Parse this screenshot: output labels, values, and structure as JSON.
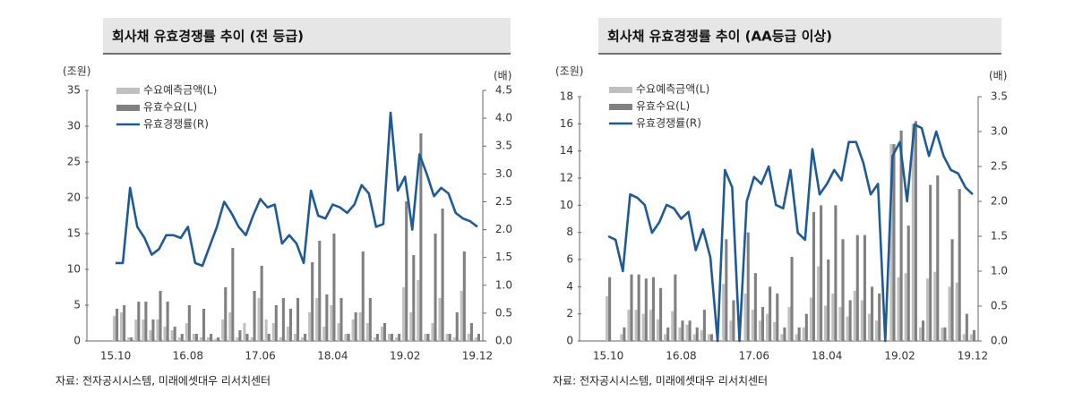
{
  "chart_data": [
    {
      "type": "bar",
      "title": "회사채 유효경쟁률 추이 (전 등급)",
      "y_label": "(조원)",
      "y2_label": "(배)",
      "source": "자료: 전자공시시스템, 미래에셋대우 리서치센터",
      "legend": "upper left",
      "categories": [
        "15.10",
        null,
        null,
        null,
        null,
        null,
        null,
        null,
        null,
        null,
        "16.08",
        null,
        null,
        null,
        null,
        null,
        null,
        null,
        null,
        null,
        "17.06",
        null,
        null,
        null,
        null,
        null,
        null,
        null,
        null,
        null,
        "18.04",
        null,
        null,
        null,
        null,
        null,
        null,
        null,
        null,
        null,
        "19.02",
        null,
        null,
        null,
        null,
        null,
        null,
        null,
        null,
        null,
        "19.12"
      ],
      "ylim": [
        0,
        35
      ],
      "yticks": [
        0,
        5,
        10,
        15,
        20,
        25,
        30,
        35
      ],
      "y2lim": [
        0,
        4.5
      ],
      "y2ticks": [
        {
          "value": 0,
          "label": "0.0"
        },
        0.5,
        {
          "value": 1,
          "label": "1.0"
        },
        1.5,
        {
          "value": 2,
          "label": "2.0"
        },
        2.5,
        {
          "value": 3,
          "label": "3.0"
        },
        3.5,
        {
          "value": 4,
          "label": "4.0"
        },
        4.5
      ],
      "series": [
        {
          "name": "수요예측금액(L)",
          "type": "bar",
          "color": "#c0c0c0",
          "values": [
            3.5,
            4,
            0.5,
            3,
            3,
            1.5,
            3,
            2,
            1.5,
            0.5,
            2.5,
            1,
            0.5,
            0.5,
            0.3,
            3,
            4,
            0.5,
            2.5,
            0.5,
            6,
            3,
            2.5,
            0.5,
            2,
            1,
            0.5,
            4,
            6,
            2,
            5,
            2.5,
            1,
            3,
            4,
            2.5,
            0.5,
            2,
            1,
            0.5,
            7.5,
            4,
            8.5,
            1,
            2.5,
            6,
            1,
            0.5,
            7,
            1,
            0.5
          ]
        },
        {
          "name": "유효수요(L)",
          "type": "bar",
          "color": "#808080",
          "values": [
            4.5,
            5,
            0.5,
            5.5,
            5.5,
            3,
            7,
            5.5,
            2,
            1,
            5,
            1,
            4.5,
            1,
            0.5,
            7.5,
            13,
            1.5,
            1,
            7,
            10.5,
            1,
            5,
            6,
            4.5,
            6,
            1,
            11,
            14,
            6.5,
            15,
            6,
            1,
            4,
            12.5,
            6,
            1,
            2.5,
            1,
            1,
            19.5,
            12,
            29,
            1,
            15,
            18.5,
            1,
            4,
            12.5,
            2.5,
            1
          ]
        },
        {
          "name": "유효경쟁률(R)",
          "type": "line",
          "axis": "y2",
          "color": "#1f5a96",
          "values": [
            1.4,
            1.4,
            2.75,
            2.05,
            1.85,
            1.55,
            1.65,
            1.9,
            1.9,
            1.85,
            2.05,
            1.4,
            1.35,
            1.7,
            2.05,
            2.5,
            2.3,
            2.05,
            1.9,
            2.25,
            2.55,
            2.4,
            2.45,
            1.75,
            1.9,
            1.75,
            1.4,
            2.7,
            2.25,
            2.2,
            2.45,
            2.4,
            2.3,
            2.45,
            2.8,
            2.65,
            2.05,
            2.1,
            4.1,
            2.7,
            2.95,
            2.0,
            3.35,
            3.0,
            2.6,
            2.75,
            2.65,
            2.3,
            2.2,
            2.15,
            2.05
          ]
        }
      ]
    },
    {
      "type": "bar",
      "title": "회사채 유효경쟁률 추이 (AA등급 이상)",
      "y_label": "(조원)",
      "y2_label": "(배)",
      "source": "자료: 전자공시시스템, 미래에셋대우 리서치센터",
      "legend": "upper left",
      "categories": [
        "15.10",
        null,
        null,
        null,
        null,
        null,
        null,
        null,
        null,
        null,
        "16.08",
        null,
        null,
        null,
        null,
        null,
        null,
        null,
        null,
        null,
        "17.06",
        null,
        null,
        null,
        null,
        null,
        null,
        null,
        null,
        null,
        "18.04",
        null,
        null,
        null,
        null,
        null,
        null,
        null,
        null,
        null,
        "19.02",
        null,
        null,
        null,
        null,
        null,
        null,
        null,
        null,
        null,
        "19.12"
      ],
      "ylim": [
        0,
        18
      ],
      "yticks": [
        0,
        2,
        4,
        6,
        8,
        10,
        12,
        14,
        16,
        18
      ],
      "y2lim": [
        0,
        3.5
      ],
      "y2ticks": [
        {
          "value": 0,
          "label": "0.0"
        },
        0.5,
        {
          "value": 1,
          "label": "1.0"
        },
        1.5,
        {
          "value": 2,
          "label": "2.0"
        },
        2.5,
        {
          "value": 3,
          "label": "3.0"
        },
        3.5
      ],
      "series": [
        {
          "name": "수요예측금액(L)",
          "type": "bar",
          "color": "#c0c0c0",
          "values": [
            3.3,
            0,
            0.5,
            2.3,
            2.3,
            2,
            2.3,
            1.6,
            0.5,
            2.2,
            1,
            1.2,
            0.5,
            0.8,
            0.5,
            0,
            4.2,
            1.5,
            0,
            3.5,
            2.3,
            1.5,
            2,
            1.4,
            0.5,
            2.5,
            0.5,
            1,
            3.2,
            5.5,
            2.6,
            3.5,
            2.5,
            1.8,
            3.7,
            3,
            2,
            1.5,
            0,
            14.5,
            4.7,
            5,
            16,
            1,
            4.6,
            5.1,
            1,
            4,
            4.3,
            0.5,
            0.5
          ]
        },
        {
          "name": "유효수요(L)",
          "type": "bar",
          "color": "#808080",
          "values": [
            4.7,
            0,
            1,
            4.9,
            4.9,
            4.6,
            4.7,
            3.9,
            1,
            4.9,
            1.5,
            1.5,
            1,
            2.3,
            0.5,
            0,
            7.5,
            3,
            0,
            8,
            5,
            2.5,
            4,
            3.5,
            1,
            6.2,
            1,
            2,
            9.5,
            10,
            6,
            10,
            7.5,
            3,
            7.8,
            7.8,
            4,
            3.5,
            0,
            14.5,
            15.5,
            8.5,
            16.2,
            1.5,
            11.5,
            12.2,
            1,
            7.5,
            11.2,
            2,
            0.8
          ]
        },
        {
          "name": "유효경쟁률(R)",
          "type": "line",
          "axis": "y2",
          "color": "#1f5a96",
          "values": [
            1.5,
            1.45,
            1.0,
            2.1,
            2.05,
            1.95,
            1.55,
            1.7,
            1.95,
            1.9,
            1.75,
            1.85,
            1.3,
            1.6,
            1.2,
            0,
            2.45,
            2.2,
            0,
            2.0,
            2.35,
            2.25,
            2.5,
            1.95,
            1.9,
            2.45,
            1.55,
            1.45,
            2.75,
            2.1,
            2.25,
            2.45,
            2.3,
            2.85,
            2.85,
            2.55,
            2.1,
            2.25,
            0,
            2.65,
            2.85,
            2.0,
            3.1,
            3.05,
            2.65,
            3.0,
            2.65,
            2.45,
            2.4,
            2.2,
            2.1
          ]
        }
      ]
    }
  ]
}
